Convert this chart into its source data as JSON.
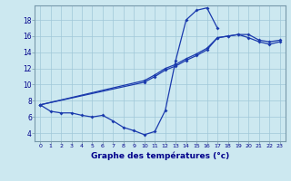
{
  "title": "Graphe des températures (°c)",
  "bg_color": "#cce8f0",
  "line_color": "#1a3aad",
  "grid_color": "#a0c8d8",
  "xlim": [
    -0.5,
    23.5
  ],
  "ylim": [
    3.0,
    19.8
  ],
  "xticks": [
    0,
    1,
    2,
    3,
    4,
    5,
    6,
    7,
    8,
    9,
    10,
    11,
    12,
    13,
    14,
    15,
    16,
    17,
    18,
    19,
    20,
    21,
    22,
    23
  ],
  "yticks": [
    4,
    6,
    8,
    10,
    12,
    14,
    16,
    18
  ],
  "curve1_y": [
    7.5,
    6.7,
    6.5,
    6.5,
    6.2,
    6.0,
    6.2,
    5.5,
    4.7,
    4.3,
    3.8,
    4.2,
    6.8,
    13.0,
    18.0,
    19.2,
    19.5,
    17.0,
    null,
    null,
    null,
    null,
    null,
    null
  ],
  "curve2_y": [
    7.5,
    null,
    null,
    null,
    null,
    null,
    null,
    null,
    null,
    null,
    10.5,
    11.2,
    12.0,
    12.5,
    13.2,
    13.8,
    14.5,
    15.8,
    16.0,
    16.2,
    16.2,
    15.5,
    15.3,
    15.5
  ],
  "curve3_y": [
    7.5,
    null,
    null,
    null,
    null,
    null,
    null,
    null,
    null,
    null,
    10.3,
    11.0,
    11.8,
    12.3,
    13.0,
    13.6,
    14.3,
    15.8,
    16.0,
    16.2,
    15.8,
    15.3,
    15.0,
    15.3
  ]
}
